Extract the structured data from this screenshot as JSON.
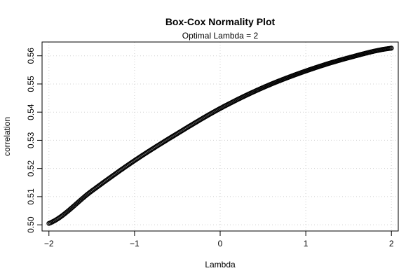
{
  "chart_data": {
    "type": "scatter",
    "title": "Box-Cox Normality Plot",
    "subtitle": "Optimal Lambda = 2",
    "xlabel": "Lambda",
    "ylabel": "correlation",
    "xlim": [
      -2.08,
      2.08
    ],
    "ylim": [
      0.4978,
      0.5649
    ],
    "x_ticks": [
      -2,
      -1,
      0,
      1,
      2
    ],
    "x_tick_labels": [
      "−2",
      "−1",
      "0",
      "1",
      "2"
    ],
    "y_ticks": [
      0.5,
      0.51,
      0.52,
      0.53,
      0.54,
      0.55,
      0.56
    ],
    "y_tick_labels": [
      "0.50",
      "0.51",
      "0.52",
      "0.53",
      "0.54",
      "0.55",
      "0.56"
    ],
    "grid": true,
    "legend": "none",
    "point_count": 401,
    "marker": "open-circle",
    "point_color": "#000000",
    "grid_color": "#d0d0d0",
    "curve_anchor_points": [
      {
        "x": -2.0,
        "y": 0.5005
      },
      {
        "x": -1.5,
        "y": 0.512
      },
      {
        "x": -1.0,
        "y": 0.5228
      },
      {
        "x": -0.5,
        "y": 0.5324
      },
      {
        "x": 0.0,
        "y": 0.5413
      },
      {
        "x": 0.5,
        "y": 0.5487
      },
      {
        "x": 1.0,
        "y": 0.5546
      },
      {
        "x": 1.5,
        "y": 0.5593
      },
      {
        "x": 2.0,
        "y": 0.5627
      }
    ]
  }
}
